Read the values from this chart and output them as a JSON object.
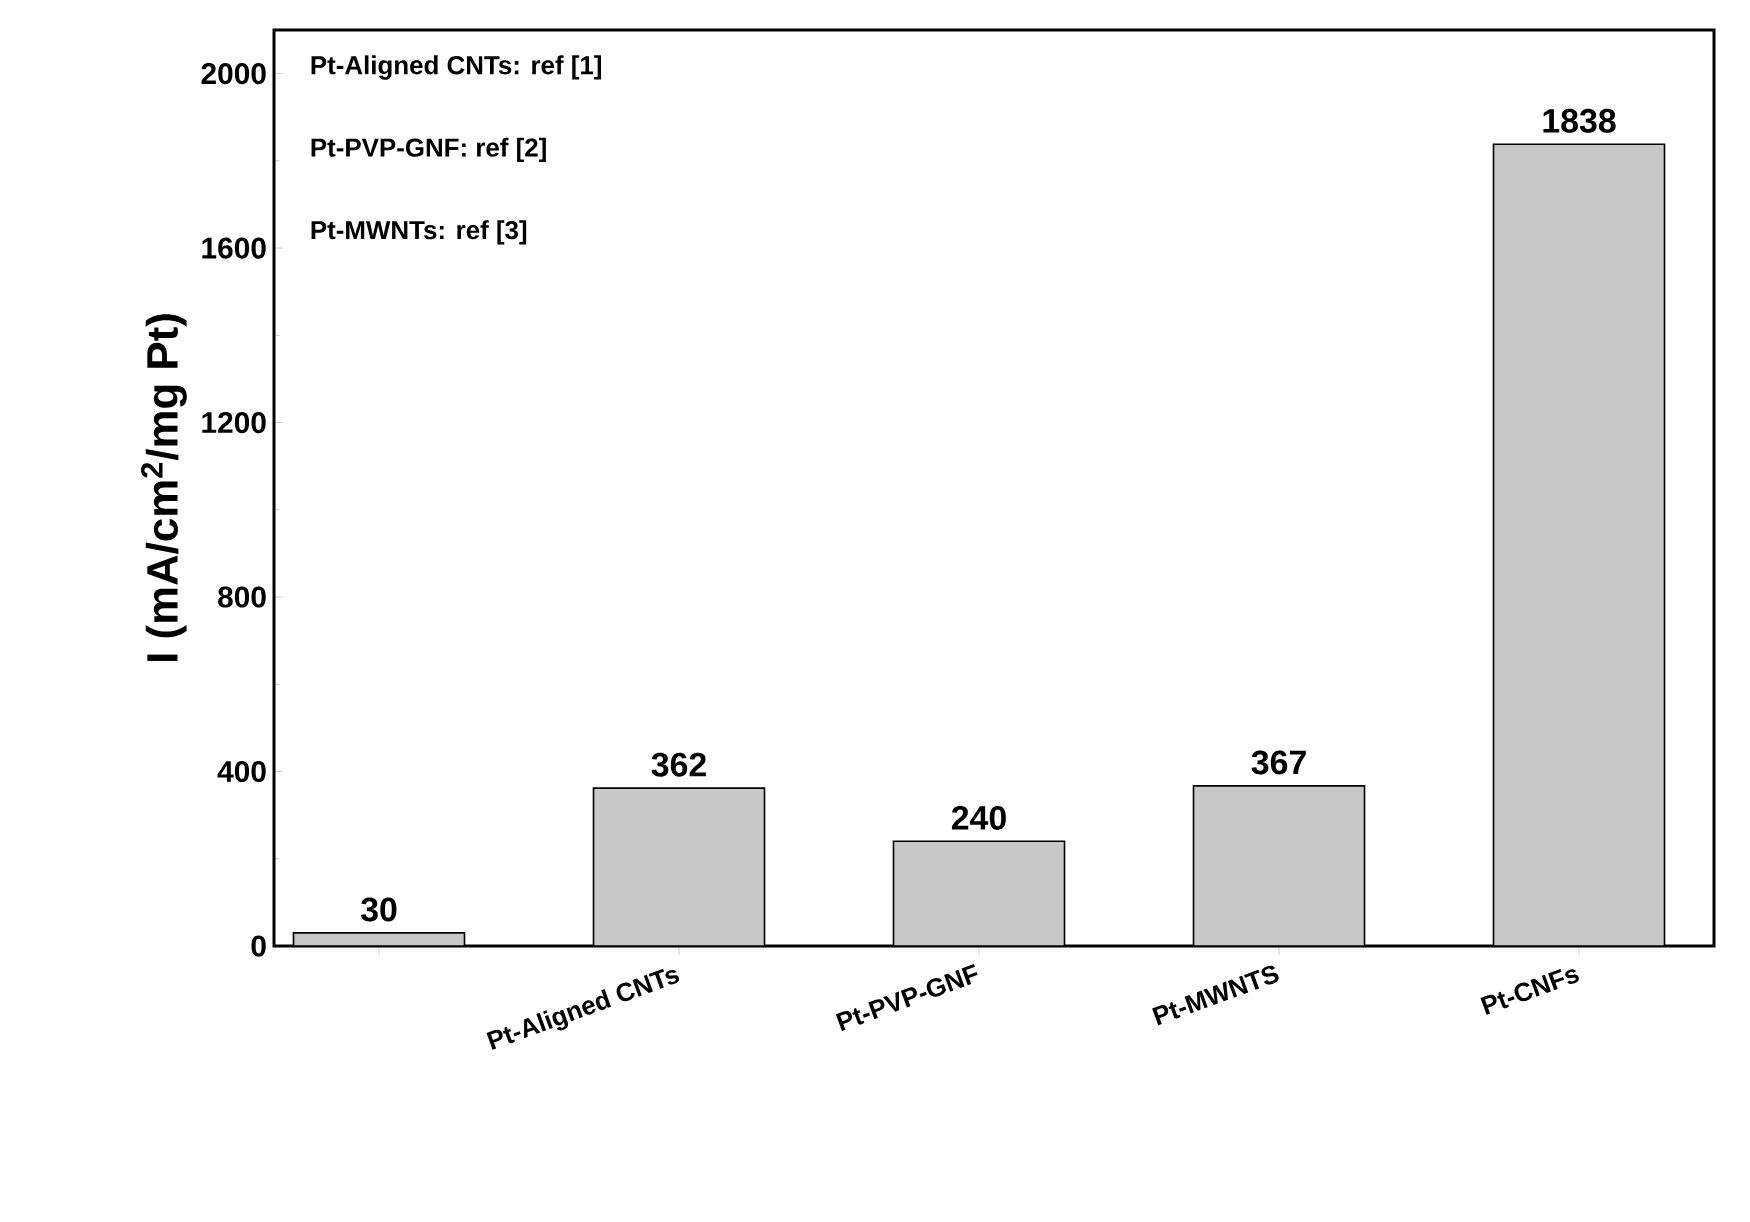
{
  "chart_data": {
    "type": "bar",
    "ylabel": "I (mA/cm$^{2}$/mg Pt)",
    "categories": [
      null,
      "Pt-Aligned CNTs",
      "Pt-PVP-GNF",
      "Pt-MWNTS",
      "Pt-CNFs"
    ],
    "values": [
      30,
      362,
      240,
      367,
      1838
    ],
    "color": "#c8c8c8",
    "ylim": [
      0,
      2100
    ],
    "yticks": [
      0,
      400,
      800,
      1200,
      1600,
      2000
    ],
    "data_labels": true,
    "annotations": [
      "Pt-Aligned CNTs: ref [1]",
      "Pt-PVP-GNF: ref [2]",
      "Pt-MWNTs: ref [3]"
    ]
  }
}
